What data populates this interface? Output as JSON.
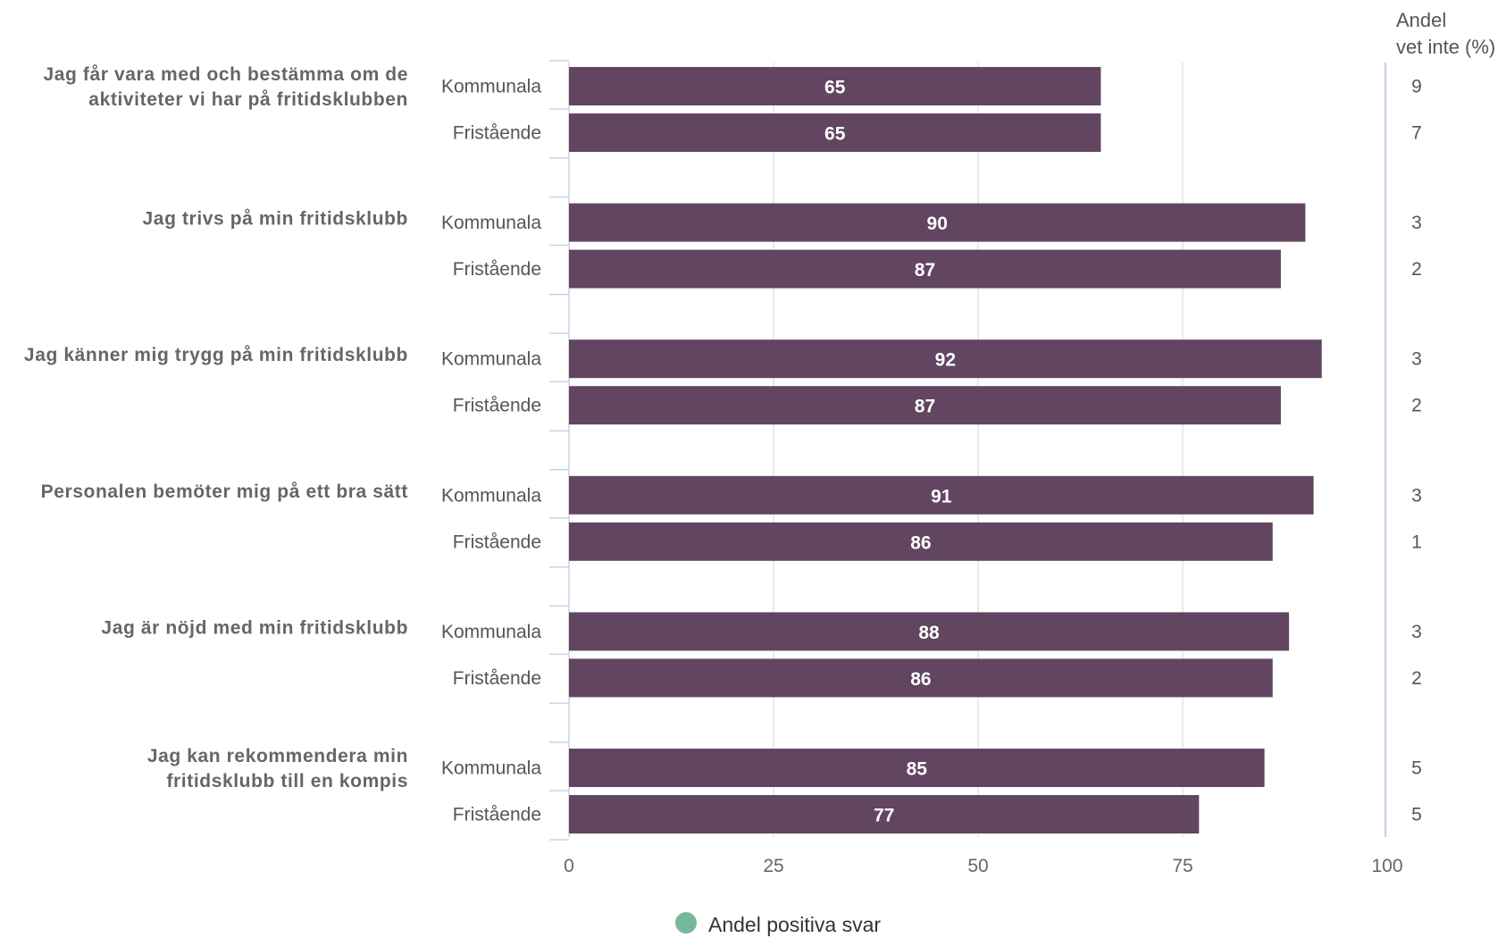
{
  "chart_data": {
    "type": "bar",
    "orientation": "horizontal",
    "xlim": [
      0,
      100
    ],
    "x_ticks": [
      0,
      25,
      50,
      75,
      100
    ],
    "bar_color": "#624561",
    "legend": {
      "label": "Andel positiva svar",
      "color": "#76b89b",
      "placement": "bottom"
    },
    "right_column_header": [
      "Andel",
      "vet inte (%)"
    ],
    "questions": [
      {
        "label": [
          "Jag får vara med och bestämma om de",
          "aktiviteter vi har på fritidsklubben"
        ],
        "groups": [
          {
            "name": "Kommunala",
            "value": 65,
            "dont_know": 9
          },
          {
            "name": "Fristående",
            "value": 65,
            "dont_know": 7
          }
        ]
      },
      {
        "label": [
          "Jag trivs på min fritidsklubb"
        ],
        "groups": [
          {
            "name": "Kommunala",
            "value": 90,
            "dont_know": 3
          },
          {
            "name": "Fristående",
            "value": 87,
            "dont_know": 2
          }
        ]
      },
      {
        "label": [
          "Jag känner mig trygg på min fritidsklubb"
        ],
        "groups": [
          {
            "name": "Kommunala",
            "value": 92,
            "dont_know": 3
          },
          {
            "name": "Fristående",
            "value": 87,
            "dont_know": 2
          }
        ]
      },
      {
        "label": [
          "Personalen bemöter mig på ett bra sätt"
        ],
        "groups": [
          {
            "name": "Kommunala",
            "value": 91,
            "dont_know": 3
          },
          {
            "name": "Fristående",
            "value": 86,
            "dont_know": 1
          }
        ]
      },
      {
        "label": [
          "Jag är nöjd med min fritidsklubb"
        ],
        "groups": [
          {
            "name": "Kommunala",
            "value": 88,
            "dont_know": 3
          },
          {
            "name": "Fristående",
            "value": 86,
            "dont_know": 2
          }
        ]
      },
      {
        "label": [
          "Jag kan rekommendera min",
          "fritidsklubb till en kompis"
        ],
        "groups": [
          {
            "name": "Kommunala",
            "value": 85,
            "dont_know": 5
          },
          {
            "name": "Fristående",
            "value": 77,
            "dont_know": 5
          }
        ]
      }
    ]
  }
}
